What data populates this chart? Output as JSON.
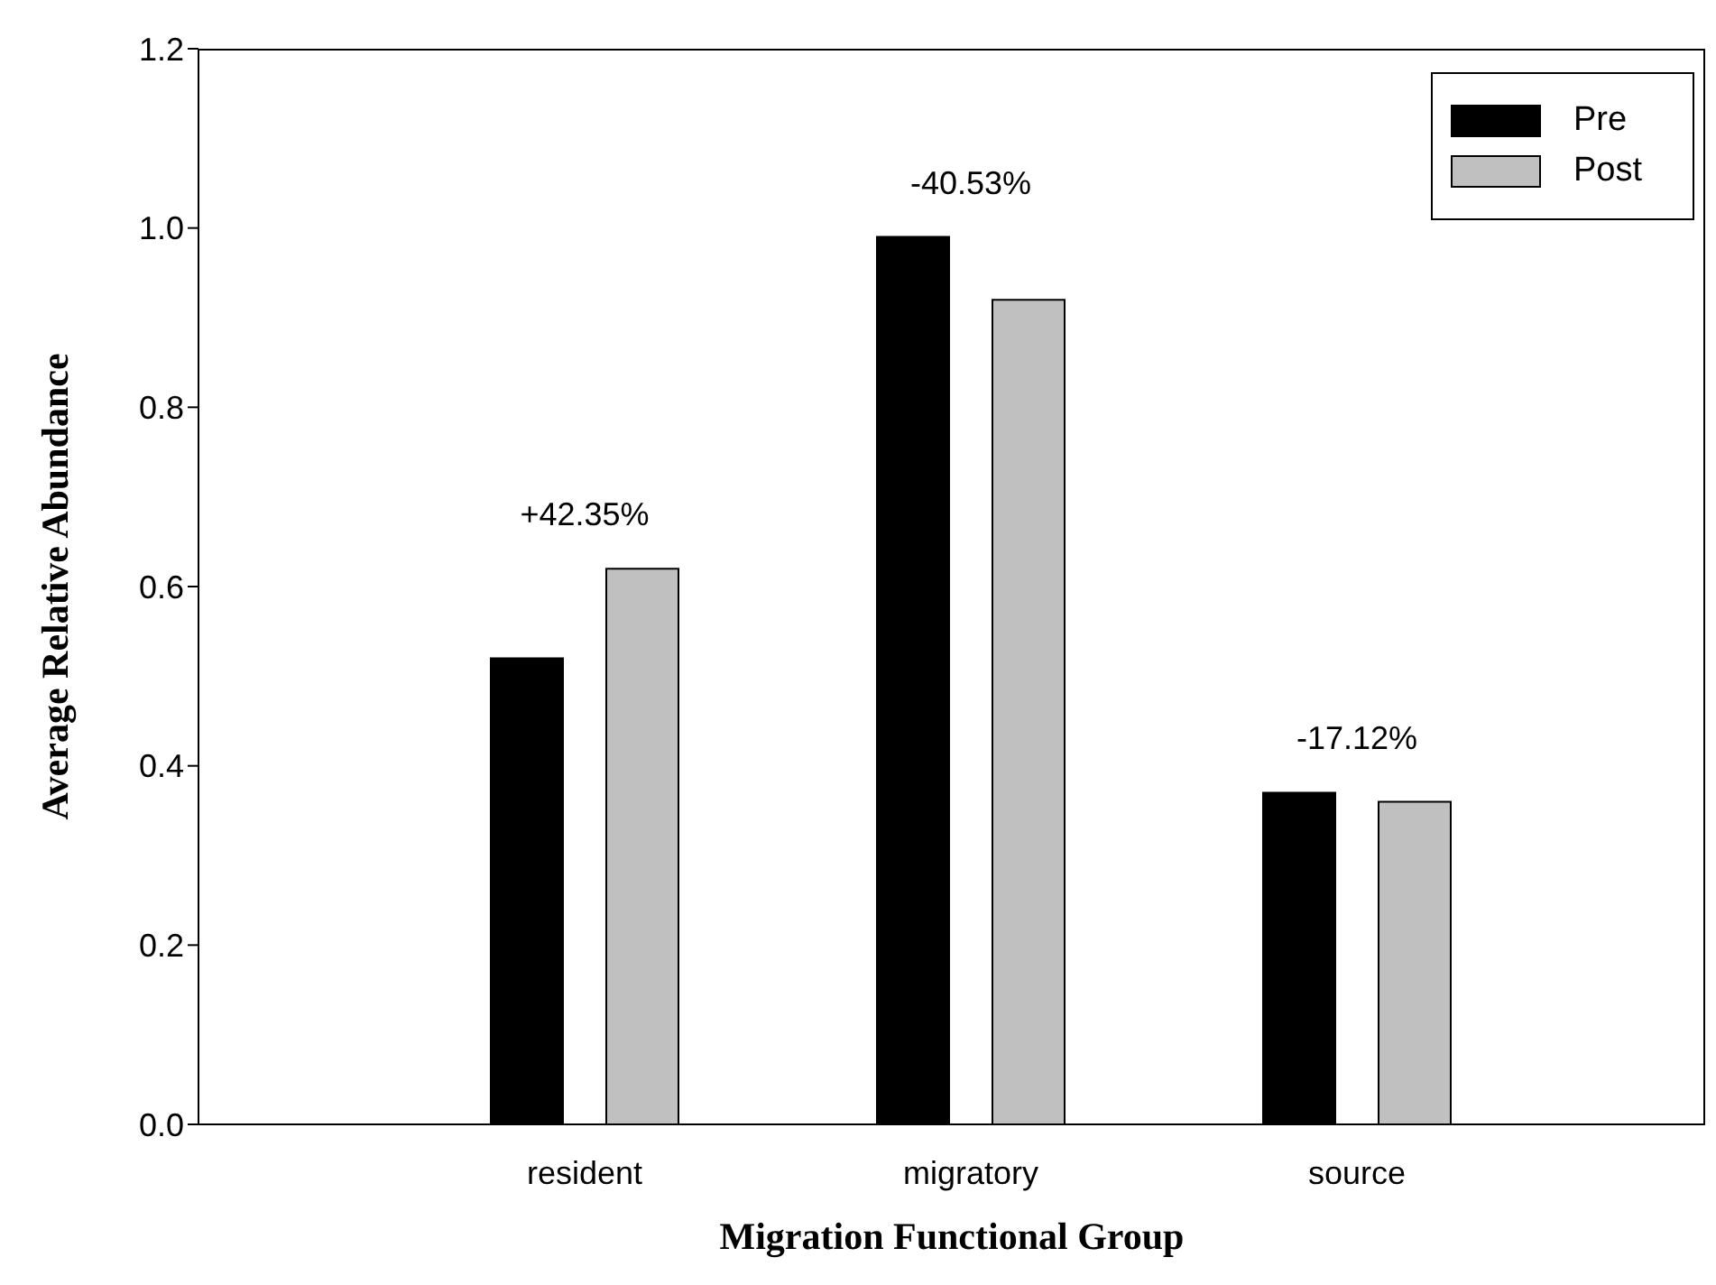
{
  "chart_data": {
    "type": "bar",
    "xlabel": "Migration Functional Group",
    "ylabel": "Average Relative Abundance",
    "categories": [
      "resident",
      "migratory",
      "source"
    ],
    "series": [
      {
        "name": "Pre",
        "color": "#000000",
        "values": [
          0.52,
          0.99,
          0.37
        ]
      },
      {
        "name": "Post",
        "color": "#c0c0c0",
        "values": [
          0.62,
          0.92,
          0.36
        ]
      }
    ],
    "ylim": [
      0,
      1.2
    ],
    "yticks": [
      {
        "value": 0,
        "label": "0.0"
      },
      {
        "value": 0.2,
        "label": "0.2"
      },
      {
        "value": 0.4,
        "label": "0.4"
      },
      {
        "value": 0.6,
        "label": "0.6"
      },
      {
        "value": 0.8,
        "label": "0.8"
      },
      {
        "value": 1,
        "label": "1.0"
      },
      {
        "value": 1.2,
        "label": "1.2"
      }
    ],
    "annotations": [
      "+42.35%",
      "-40.53%",
      "-17.12%"
    ],
    "legend": "top right",
    "grid": false
  }
}
